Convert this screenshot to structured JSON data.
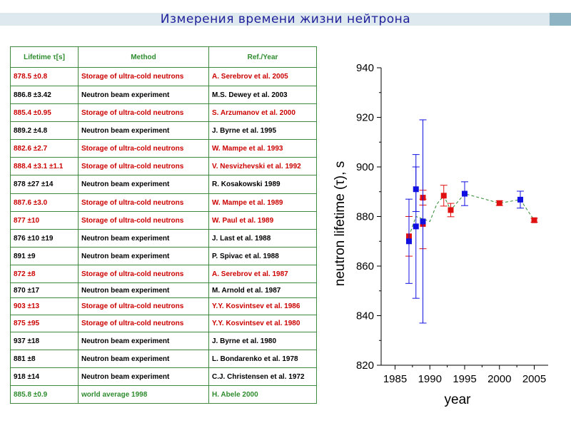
{
  "title": "Измерения времени жизни нейтрона",
  "table": {
    "headers": [
      "Lifetime τ[s]",
      "Method",
      "Ref./Year"
    ],
    "rows": [
      {
        "lifetime": "878.5 ±0.8",
        "method": "Storage of ultra-cold neutrons",
        "ref": "A. Serebrov et al. 2005",
        "color": "red"
      },
      {
        "lifetime": "886.8 ±3.42",
        "method": "Neutron beam experiment",
        "ref": "M.S. Dewey et al. 2003",
        "color": "black"
      },
      {
        "lifetime": "885.4 ±0.95",
        "method": "Storage of ultra-cold neutrons",
        "ref": "S. Arzumanov et al. 2000",
        "color": "red"
      },
      {
        "lifetime": "889.2 ±4.8",
        "method": "Neutron beam experiment",
        "ref": "J. Byrne et al. 1995",
        "color": "black"
      },
      {
        "lifetime": "882.6 ±2.7",
        "method": "Storage of ultra-cold neutrons",
        "ref": "W. Mampe et al. 1993",
        "color": "red"
      },
      {
        "lifetime": "888.4 ±3.1 ±1.1",
        "method": "Storage of ultra-cold neutrons",
        "ref": "V. Nesvizhevski et al. 1992",
        "color": "red"
      },
      {
        "lifetime": "878 ±27 ±14",
        "method": "Neutron beam experiment",
        "ref": "R. Kosakowski 1989",
        "color": "black"
      },
      {
        "lifetime": "887.6 ±3.0",
        "method": "Storage of ultra-cold neutrons",
        "ref": "W. Mampe et al. 1989",
        "color": "red"
      },
      {
        "lifetime": "877 ±10",
        "method": "Storage of ultra-cold neutrons",
        "ref": "W. Paul et al. 1989",
        "color": "red"
      },
      {
        "lifetime": "876 ±10 ±19",
        "method": "Neutron beam experiment",
        "ref": "J. Last et al. 1988",
        "color": "black"
      },
      {
        "lifetime": "891 ±9",
        "method": "Neutron beam experiment",
        "ref": "P. Spivac et al. 1988",
        "color": "black"
      },
      {
        "lifetime": "872 ±8",
        "method": "Storage of ultra-cold neutrons",
        "ref": "A. Serebrov et al. 1987",
        "color": "red"
      },
      {
        "lifetime": "870 ±17",
        "method": "Neutron beam experiment",
        "ref": "M. Arnold et al. 1987",
        "color": "black"
      },
      {
        "lifetime": "903 ±13",
        "method": "Storage of ultra-cold neutrons",
        "ref": "Y.Y. Kosvintsev et al. 1986",
        "color": "red"
      },
      {
        "lifetime": "875 ±95",
        "method": "Storage of ultra-cold neutrons",
        "ref": "Y.Y. Kosvintsev et al. 1980",
        "color": "red"
      },
      {
        "lifetime": "937 ±18",
        "method": "Neutron beam experiment",
        "ref": "J. Byrne et al. 1980",
        "color": "black"
      },
      {
        "lifetime": "881 ±8",
        "method": "Neutron beam experiment",
        "ref": "L. Bondarenko et al. 1978",
        "color": "black"
      },
      {
        "lifetime": "918 ±14",
        "method": "Neutron beam experiment",
        "ref": "C.J. Christensen et al. 1972",
        "color": "black"
      },
      {
        "lifetime": "885.8 ±0.9",
        "method": "world average 1998",
        "ref": "H. Abele 2000",
        "color": "green"
      }
    ]
  },
  "colors": {
    "ucn": "#e01010",
    "beam": "#1010e0",
    "fit_line": "#2e8b2e",
    "table_border": "#3e8a3e",
    "header_text": "#2e8b2e",
    "title": "#1f1f9a"
  },
  "chart_data": {
    "type": "scatter",
    "xlabel": "year",
    "ylabel": "neutron lifetime (τ), s",
    "xlim": [
      1983,
      2007
    ],
    "ylim": [
      820,
      940
    ],
    "xticks": [
      1985,
      1990,
      1995,
      2000,
      2005
    ],
    "yticks": [
      820,
      840,
      860,
      880,
      900,
      920,
      940
    ],
    "series": [
      {
        "color": "#e01010",
        "marker": "square",
        "points": [
          {
            "x": 1987,
            "y": 872,
            "err": 8
          },
          {
            "x": 1989,
            "y": 877,
            "err": 10
          },
          {
            "x": 1989,
            "y": 887.6,
            "err": 3.0
          },
          {
            "x": 1992,
            "y": 888.4,
            "err": 4.2
          },
          {
            "x": 1993,
            "y": 882.6,
            "err": 2.7
          },
          {
            "x": 2000,
            "y": 885.4,
            "err": 0.95
          },
          {
            "x": 2005,
            "y": 878.5,
            "err": 0.8
          }
        ]
      },
      {
        "color": "#1010e0",
        "marker": "square",
        "points": [
          {
            "x": 1987,
            "y": 870,
            "err": 17
          },
          {
            "x": 1988,
            "y": 891,
            "err": 9
          },
          {
            "x": 1988,
            "y": 876,
            "err": 29
          },
          {
            "x": 1989,
            "y": 878,
            "err": 41
          },
          {
            "x": 1995,
            "y": 889.2,
            "err": 4.8
          },
          {
            "x": 2003,
            "y": 886.8,
            "err": 3.42
          }
        ]
      }
    ],
    "trend": {
      "style": "dashed",
      "x": [
        1987,
        1987.5,
        1988,
        1989,
        1990,
        1991,
        1992,
        1993,
        1995,
        2000,
        2003,
        2005
      ],
      "y": [
        872,
        876,
        880,
        879,
        878,
        885,
        888.4,
        882.6,
        889.2,
        885.4,
        886.8,
        878.5
      ]
    }
  }
}
